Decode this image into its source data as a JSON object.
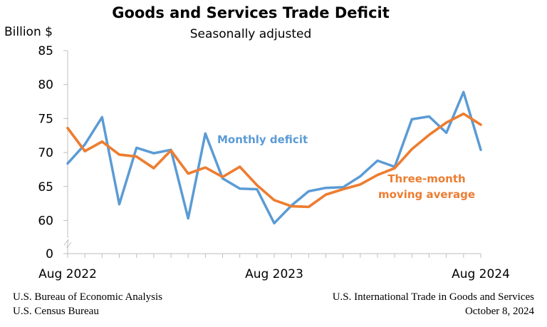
{
  "chart_data": {
    "type": "line",
    "title": "Goods and Services Trade Deficit",
    "subtitle": "Seasonally adjusted",
    "ylabel": "Billion $",
    "xlabel": "",
    "ylim": [
      0,
      85
    ],
    "axis_break": true,
    "yticks": [
      0,
      60,
      65,
      70,
      75,
      80,
      85
    ],
    "x": [
      "Aug 2022",
      "Sep 2022",
      "Oct 2022",
      "Nov 2022",
      "Dec 2022",
      "Jan 2023",
      "Feb 2023",
      "Mar 2023",
      "Apr 2023",
      "May 2023",
      "Jun 2023",
      "Jul 2023",
      "Aug 2023",
      "Sep 2023",
      "Oct 2023",
      "Nov 2023",
      "Dec 2023",
      "Jan 2024",
      "Feb 2024",
      "Mar 2024",
      "Apr 2024",
      "May 2024",
      "Jun 2024",
      "Jul 2024",
      "Aug 2024"
    ],
    "xtick_labels": [
      "Aug 2022",
      "Aug 2023",
      "Aug 2024"
    ],
    "series": [
      {
        "name": "Monthly deficit",
        "color": "#5b9bd5",
        "values": [
          68.4,
          71.2,
          75.2,
          62.4,
          70.7,
          69.9,
          70.4,
          60.3,
          72.8,
          66.2,
          64.7,
          64.6,
          59.6,
          62.2,
          64.3,
          64.8,
          64.9,
          66.5,
          68.8,
          67.9,
          74.9,
          75.3,
          72.9,
          78.9,
          70.4
        ]
      },
      {
        "name": "Three-month moving average",
        "color": "#ed7d31",
        "values": [
          73.6,
          70.2,
          71.6,
          69.7,
          69.4,
          67.7,
          70.3,
          66.9,
          67.8,
          66.4,
          67.9,
          65.2,
          63.0,
          62.1,
          62.0,
          63.8,
          64.6,
          65.3,
          66.7,
          67.7,
          70.5,
          72.6,
          74.4,
          75.7,
          74.1
        ]
      }
    ],
    "annotations": [
      {
        "text": "Monthly deficit",
        "color": "#5b9bd5"
      },
      {
        "text": "Three-month",
        "color": "#ed7d31"
      },
      {
        "text": "moving average",
        "color": "#ed7d31"
      }
    ],
    "grid": false,
    "legend": "none"
  },
  "footer": {
    "left_line1": "U.S. Bureau of Economic Analysis",
    "left_line2": "U.S. Census Bureau",
    "right_line1": "U.S. International Trade in Goods and Services",
    "right_line2": "October 8, 2024"
  }
}
